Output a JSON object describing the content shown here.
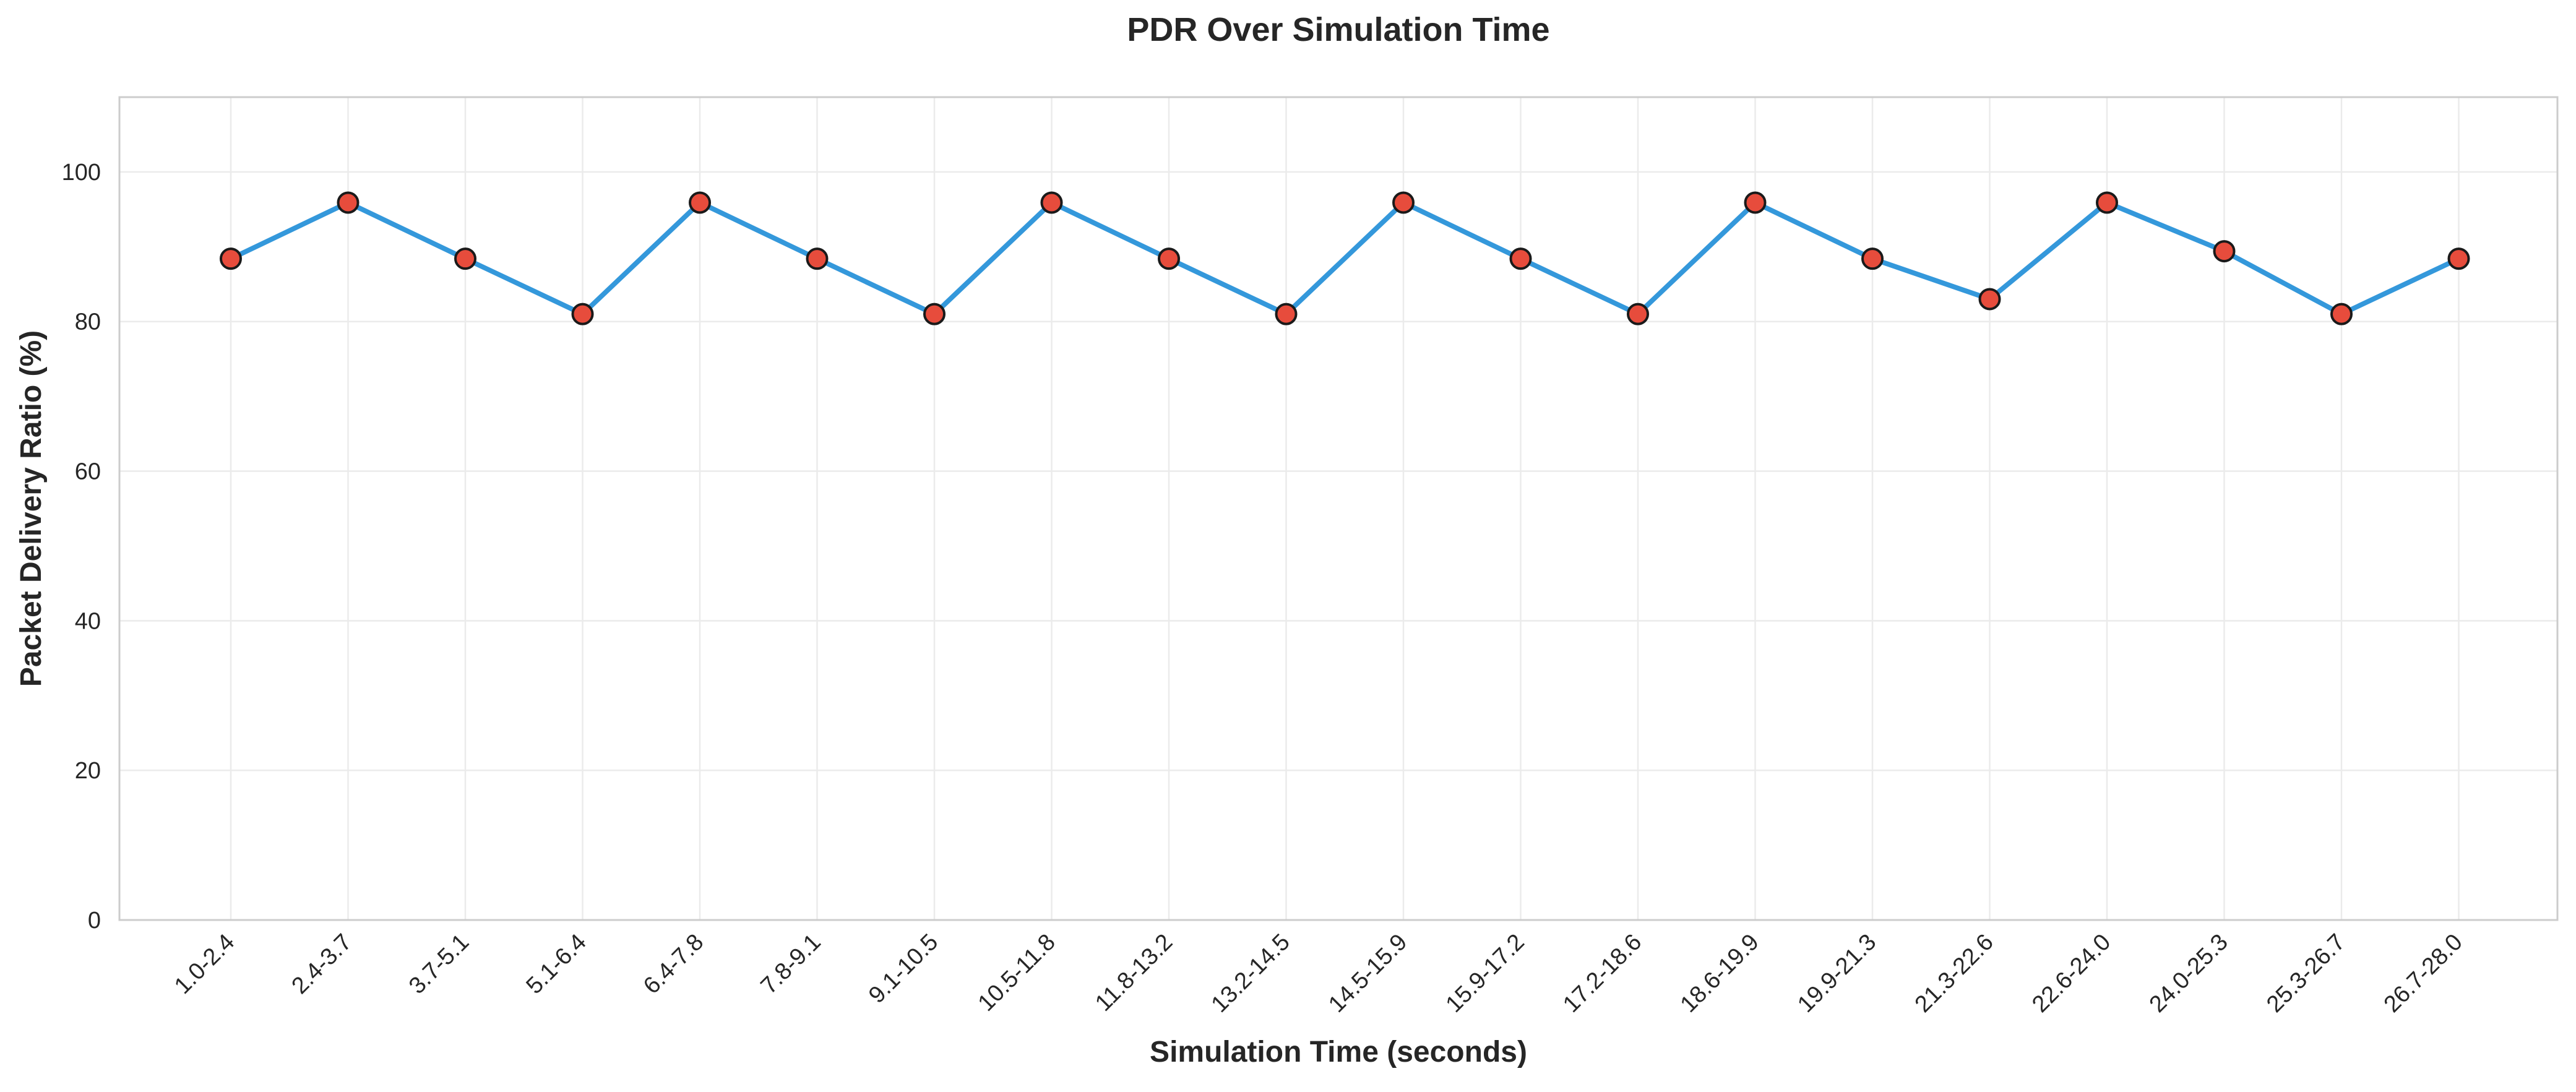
{
  "chart_data": {
    "type": "line",
    "title": "PDR Over Simulation Time",
    "xlabel": "Simulation Time (seconds)",
    "ylabel": "Packet Delivery Ratio (%)",
    "categories": [
      "1.0-2.4",
      "2.4-3.7",
      "3.7-5.1",
      "5.1-6.4",
      "6.4-7.8",
      "7.8-9.1",
      "9.1-10.5",
      "10.5-11.8",
      "11.8-13.2",
      "13.2-14.5",
      "14.5-15.9",
      "15.9-17.2",
      "17.2-18.6",
      "18.6-19.9",
      "19.9-21.3",
      "21.3-22.6",
      "22.6-24.0",
      "24.0-25.3",
      "25.3-26.7",
      "26.7-28.0"
    ],
    "values": [
      88.4,
      95.9,
      88.4,
      81.0,
      95.9,
      88.4,
      81.0,
      95.9,
      88.4,
      81.0,
      95.9,
      88.4,
      81.0,
      95.9,
      88.4,
      83.0,
      95.9,
      89.4,
      81.0,
      88.4
    ],
    "ylim": [
      0,
      110
    ],
    "yticks": [
      0,
      20,
      40,
      60,
      80,
      100
    ],
    "grid": true,
    "legend": "none",
    "colors": {
      "line": "#3498db",
      "marker_fill": "#e74c3c",
      "marker_edge": "#1a1a1a",
      "grid": "#ebebeb",
      "frame": "#cccccc",
      "text": "#262626"
    }
  }
}
